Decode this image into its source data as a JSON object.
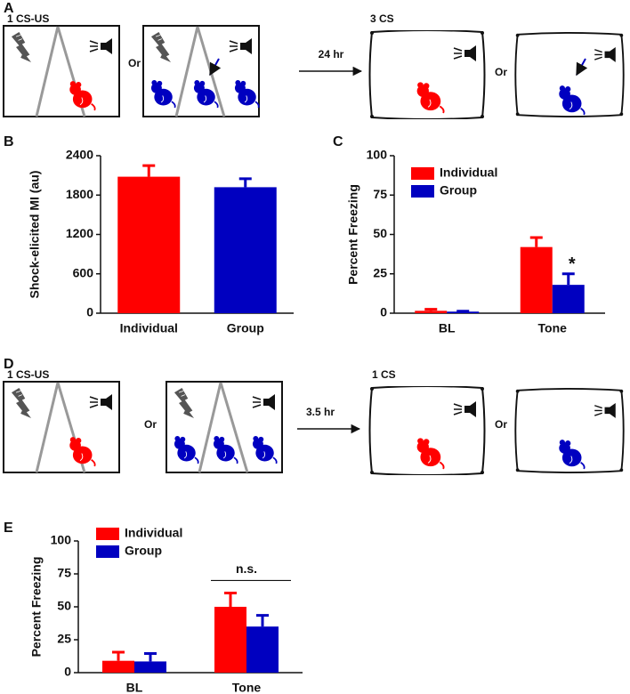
{
  "figure": {
    "labels": [
      "A",
      "B",
      "C",
      "D",
      "E"
    ],
    "schematic_a": {
      "training": "1 CS-US",
      "or": "Or",
      "delay": "24 hr",
      "test": "3 CS"
    },
    "schematic_d": {
      "training": "1 CS-US",
      "or": "Or",
      "delay": "3.5 hr",
      "test": "1 CS"
    }
  },
  "chart_data": [
    {
      "type": "bar",
      "ylabel": "Shock-elicited MI (au)",
      "categories": [
        "Individual",
        "Group"
      ],
      "values": [
        2080,
        1920
      ],
      "errors": [
        170,
        130
      ],
      "colors": [
        "#ff0000",
        "#0000c0"
      ],
      "ylim": [
        0,
        2400
      ],
      "yticks": [
        0,
        600,
        1200,
        1800,
        2400
      ]
    },
    {
      "type": "grouped-bar",
      "ylabel": "Percent Freezing",
      "categories": [
        "BL",
        "Tone"
      ],
      "series": [
        {
          "name": "Individual",
          "color": "#ff0000",
          "values": [
            1.5,
            42
          ],
          "errors": [
            1,
            6
          ]
        },
        {
          "name": "Group",
          "color": "#0000c0",
          "values": [
            1,
            18
          ],
          "errors": [
            0.3,
            7
          ]
        }
      ],
      "annotation": "*",
      "legend": "upper left",
      "ylim": [
        0,
        100
      ],
      "yticks": [
        0,
        25,
        50,
        75,
        100
      ]
    },
    {
      "type": "grouped-bar",
      "ylabel": "Percent Freezing",
      "categories": [
        "BL",
        "Tone"
      ],
      "series": [
        {
          "name": "Individual",
          "color": "#ff0000",
          "values": [
            9,
            50
          ],
          "errors": [
            6.5,
            10.5
          ]
        },
        {
          "name": "Group",
          "color": "#0000c0",
          "values": [
            8.5,
            35
          ],
          "errors": [
            6,
            8.5
          ]
        }
      ],
      "annotation": "n.s.",
      "legend": "upper left",
      "ylim": [
        0,
        100
      ],
      "yticks": [
        0,
        25,
        50,
        75,
        100
      ]
    }
  ]
}
